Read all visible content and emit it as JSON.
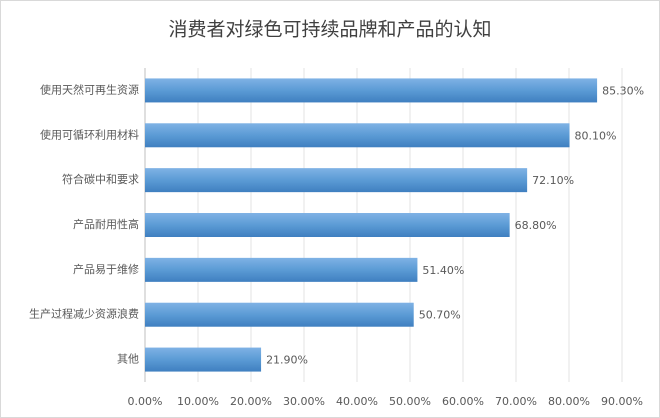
{
  "chart_data": {
    "type": "hbar",
    "title": "消费者对绿色可持续品牌和产品的认知",
    "categories": [
      "使用天然可再生资源",
      "使用可循环利用材料",
      "符合碳中和要求",
      "产品耐用性高",
      "产品易于维修",
      "生产过程减少资源浪费",
      "其他"
    ],
    "values": [
      85.3,
      80.1,
      72.1,
      68.8,
      51.4,
      50.7,
      21.9
    ],
    "value_labels": [
      "85.30%",
      "80.10%",
      "72.10%",
      "68.80%",
      "51.40%",
      "50.70%",
      "21.90%"
    ],
    "color": "#5b9bd5",
    "xlim": [
      0,
      90
    ],
    "xticks": [
      {
        "value": 0,
        "label": "0.00%"
      },
      {
        "value": 10,
        "label": "10.00%"
      },
      {
        "value": 20,
        "label": "20.00%"
      },
      {
        "value": 30,
        "label": "30.00%"
      },
      {
        "value": 40,
        "label": "40.00%"
      },
      {
        "value": 50,
        "label": "50.00%"
      },
      {
        "value": 60,
        "label": "60.00%"
      },
      {
        "value": 70,
        "label": "70.00%"
      },
      {
        "value": 80,
        "label": "80.00%"
      },
      {
        "value": 90,
        "label": "90.00%"
      }
    ],
    "grid": true
  }
}
